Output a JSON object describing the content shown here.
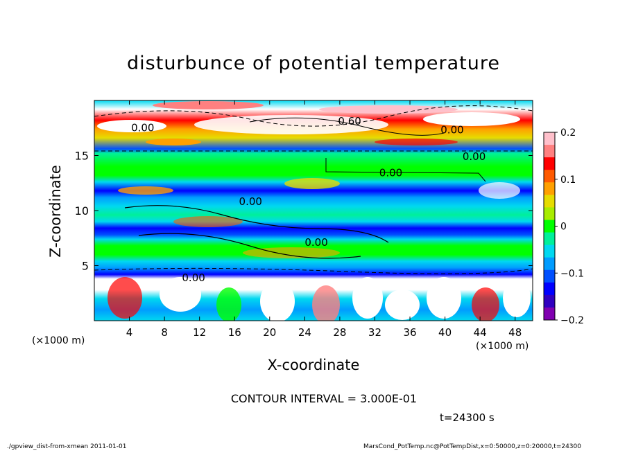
{
  "chart_data": {
    "type": "heatmap",
    "title": "disturbunce of potential temperature",
    "xlabel": "X-coordinate",
    "ylabel": "Z-coordinate",
    "x_unit_left": "(×1000 m)",
    "x_unit_right": "(×1000 m)",
    "xlim": [
      0,
      50
    ],
    "ylim": [
      0,
      20
    ],
    "x_ticks": [
      4,
      8,
      12,
      16,
      20,
      24,
      28,
      32,
      36,
      40,
      44,
      48
    ],
    "y_ticks": [
      5,
      10,
      15
    ],
    "colorbar": {
      "ticks": [
        0.2,
        0.1,
        0,
        -0.1,
        -0.2
      ],
      "tick_labels": [
        "0.2",
        "0.1",
        "0",
        "−0.1",
        "−0.2"
      ],
      "range": [
        -0.2,
        0.2
      ],
      "colors": [
        "#ffc0cb",
        "#ff8080",
        "#ff0000",
        "#ff5a00",
        "#ffa000",
        "#e6dc00",
        "#a8ec00",
        "#00ff00",
        "#00f09a",
        "#00d8f0",
        "#009cff",
        "#0050ff",
        "#0000ff",
        "#3000c0",
        "#8000b0"
      ]
    },
    "contour_labels": [
      "0.00",
      "0.60",
      "0.00",
      "0.00",
      "0.00",
      "0.00",
      "0.00",
      "0.00"
    ],
    "contour_interval_text": "CONTOUR INTERVAL = 3.000E-01",
    "time_text": "t=24300 s"
  },
  "footer": {
    "left": "./gpview_dist-from-xmean   2011-01-01",
    "right": "MarsCond_PotTemp.nc@PotTempDist,x=0:50000,z=0:20000,t=24300"
  }
}
